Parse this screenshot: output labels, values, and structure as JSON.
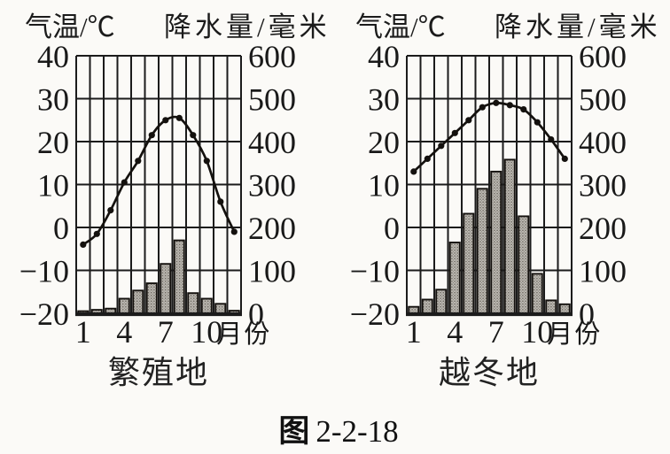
{
  "page": {
    "background_color": "#fbfaf7",
    "ink_color": "#1b1b1b",
    "bar_fill_color": "#c1beb7",
    "bar_dot_color": "#6d6861"
  },
  "figure": {
    "caption_prefix": "图",
    "caption_number": "2-2-18",
    "temp_axis_title": "气温/℃",
    "precip_axis_title": "降水量/毫米",
    "month_axis_label": "月份"
  },
  "chart_data": [
    {
      "type": "bar+line",
      "title": "繁殖地",
      "categories": [
        1,
        2,
        3,
        4,
        5,
        6,
        7,
        8,
        9,
        10,
        11,
        12
      ],
      "series": [
        {
          "name": "气温",
          "type": "line",
          "axis": "left",
          "unit": "℃",
          "values": [
            -4,
            -1.5,
            4,
            10.5,
            15.5,
            21.5,
            25,
            25.5,
            21.5,
            15.5,
            6,
            -1
          ]
        },
        {
          "name": "降水量",
          "type": "bar",
          "axis": "right",
          "unit": "毫米",
          "values": [
            5,
            8,
            11,
            34,
            53,
            70,
            115,
            170,
            47,
            34,
            22,
            6
          ]
        }
      ],
      "axes": {
        "left": {
          "label": "气温/℃",
          "range": [
            -20,
            40
          ],
          "ticks": [
            40,
            30,
            20,
            10,
            0,
            -10,
            -20
          ]
        },
        "right": {
          "label": "降水量/毫米",
          "range": [
            0,
            600
          ],
          "ticks": [
            600,
            500,
            400,
            300,
            200,
            100,
            0
          ]
        },
        "x": {
          "label": "月份",
          "tick_values": [
            1,
            4,
            7,
            10
          ]
        }
      },
      "grid": true,
      "legend": "none"
    },
    {
      "type": "bar+line",
      "title": "越冬地",
      "categories": [
        1,
        2,
        3,
        4,
        5,
        6,
        7,
        8,
        9,
        10,
        11,
        12
      ],
      "series": [
        {
          "name": "气温",
          "type": "line",
          "axis": "left",
          "unit": "℃",
          "values": [
            13,
            16,
            19,
            22,
            25,
            28,
            29,
            28.5,
            27.5,
            24.5,
            20.5,
            16
          ]
        },
        {
          "name": "降水量",
          "type": "bar",
          "axis": "right",
          "unit": "毫米",
          "values": [
            15,
            32,
            55,
            165,
            232,
            290,
            330,
            358,
            226,
            92,
            30,
            21
          ]
        }
      ],
      "axes": {
        "left": {
          "label": "气温/℃",
          "range": [
            -20,
            40
          ],
          "ticks": [
            40,
            30,
            20,
            10,
            0,
            -10,
            -20
          ]
        },
        "right": {
          "label": "降水量/毫米",
          "range": [
            0,
            600
          ],
          "ticks": [
            600,
            500,
            400,
            300,
            200,
            100,
            0
          ]
        },
        "x": {
          "label": "月份",
          "tick_values": [
            1,
            4,
            7,
            10
          ]
        }
      },
      "grid": true,
      "legend": "none"
    }
  ]
}
